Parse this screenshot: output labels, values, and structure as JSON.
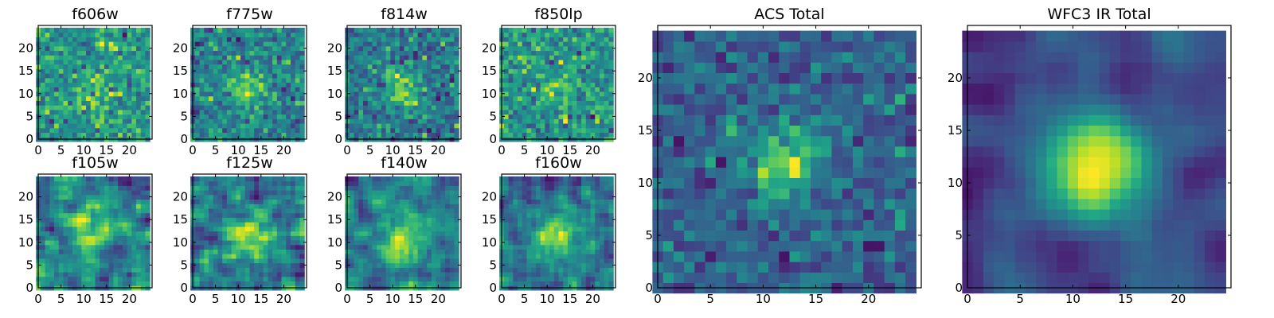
{
  "chart_data": [
    {
      "type": "heatmap",
      "title": "f606w",
      "grid_size": 25,
      "colormap": "viridis",
      "seed": 11,
      "source_strength": 0.12,
      "source_center": [
        12,
        11
      ],
      "source_sigma": 3.0,
      "noise": 1.0,
      "smooth": 0,
      "xticks": [
        0,
        5,
        10,
        15,
        20
      ],
      "yticks": [
        0,
        5,
        10,
        15,
        20
      ],
      "xlim": [
        0,
        25
      ],
      "ylim": [
        0,
        25
      ]
    },
    {
      "type": "heatmap",
      "title": "f775w",
      "grid_size": 25,
      "colormap": "viridis",
      "seed": 23,
      "source_strength": 0.25,
      "source_center": [
        12,
        11
      ],
      "source_sigma": 3.0,
      "noise": 1.0,
      "smooth": 0,
      "xticks": [
        0,
        5,
        10,
        15,
        20
      ],
      "yticks": [
        0,
        5,
        10,
        15,
        20
      ],
      "xlim": [
        0,
        25
      ],
      "ylim": [
        0,
        25
      ]
    },
    {
      "type": "heatmap",
      "title": "f814w",
      "grid_size": 25,
      "colormap": "viridis",
      "seed": 37,
      "source_strength": 0.3,
      "source_center": [
        12,
        11
      ],
      "source_sigma": 3.0,
      "noise": 1.0,
      "smooth": 0,
      "xticks": [
        0,
        5,
        10,
        15,
        20
      ],
      "yticks": [
        0,
        5,
        10,
        15,
        20
      ],
      "xlim": [
        0,
        25
      ],
      "ylim": [
        0,
        25
      ]
    },
    {
      "type": "heatmap",
      "title": "f850lp",
      "grid_size": 25,
      "colormap": "viridis",
      "seed": 41,
      "source_strength": 0.15,
      "source_center": [
        12,
        11
      ],
      "source_sigma": 3.0,
      "noise": 1.0,
      "smooth": 0,
      "xticks": [
        0,
        5,
        10,
        15,
        20
      ],
      "yticks": [
        0,
        5,
        10,
        15,
        20
      ],
      "xlim": [
        0,
        25
      ],
      "ylim": [
        0,
        25
      ]
    },
    {
      "type": "heatmap",
      "title": "f105w",
      "grid_size": 25,
      "colormap": "viridis",
      "seed": 53,
      "source_strength": 0.35,
      "source_center": [
        12,
        11
      ],
      "source_sigma": 3.5,
      "noise": 1.0,
      "smooth": 1,
      "xticks": [
        0,
        5,
        10,
        15,
        20
      ],
      "yticks": [
        0,
        5,
        10,
        15,
        20
      ],
      "xlim": [
        0,
        25
      ],
      "ylim": [
        0,
        25
      ]
    },
    {
      "type": "heatmap",
      "title": "f125w",
      "grid_size": 25,
      "colormap": "viridis",
      "seed": 67,
      "source_strength": 0.4,
      "source_center": [
        12,
        11
      ],
      "source_sigma": 3.5,
      "noise": 1.0,
      "smooth": 1,
      "xticks": [
        0,
        5,
        10,
        15,
        20
      ],
      "yticks": [
        0,
        5,
        10,
        15,
        20
      ],
      "xlim": [
        0,
        25
      ],
      "ylim": [
        0,
        25
      ]
    },
    {
      "type": "heatmap",
      "title": "f140w",
      "grid_size": 25,
      "colormap": "viridis",
      "seed": 79,
      "source_strength": 0.4,
      "source_center": [
        12,
        11
      ],
      "source_sigma": 3.5,
      "noise": 1.0,
      "smooth": 1,
      "xticks": [
        0,
        5,
        10,
        15,
        20
      ],
      "yticks": [
        0,
        5,
        10,
        15,
        20
      ],
      "xlim": [
        0,
        25
      ],
      "ylim": [
        0,
        25
      ]
    },
    {
      "type": "heatmap",
      "title": "f160w",
      "grid_size": 25,
      "colormap": "viridis",
      "seed": 83,
      "source_strength": 0.4,
      "source_center": [
        12,
        11
      ],
      "source_sigma": 3.5,
      "noise": 1.0,
      "smooth": 1,
      "xticks": [
        0,
        5,
        10,
        15,
        20
      ],
      "yticks": [
        0,
        5,
        10,
        15,
        20
      ],
      "xlim": [
        0,
        25
      ],
      "ylim": [
        0,
        25
      ]
    },
    {
      "type": "heatmap",
      "title": "ACS Total",
      "grid_size": 25,
      "colormap": "viridis",
      "seed": 97,
      "source_strength": 0.45,
      "source_center": [
        12,
        12
      ],
      "source_sigma": 2.5,
      "noise": 0.8,
      "smooth": 0,
      "xticks": [
        0,
        5,
        10,
        15,
        20
      ],
      "yticks": [
        0,
        5,
        10,
        15,
        20
      ],
      "xlim": [
        0,
        25
      ],
      "ylim": [
        0,
        25
      ]
    },
    {
      "type": "heatmap",
      "title": "WFC3 IR Total",
      "grid_size": 25,
      "colormap": "viridis",
      "seed": 101,
      "source_strength": 0.7,
      "source_center": [
        12,
        12
      ],
      "source_sigma": 3.5,
      "noise": 0.8,
      "smooth": 2,
      "xticks": [
        0,
        5,
        10,
        15,
        20
      ],
      "yticks": [
        0,
        5,
        10,
        15,
        20
      ],
      "xlim": [
        0,
        25
      ],
      "ylim": [
        0,
        25
      ]
    }
  ]
}
